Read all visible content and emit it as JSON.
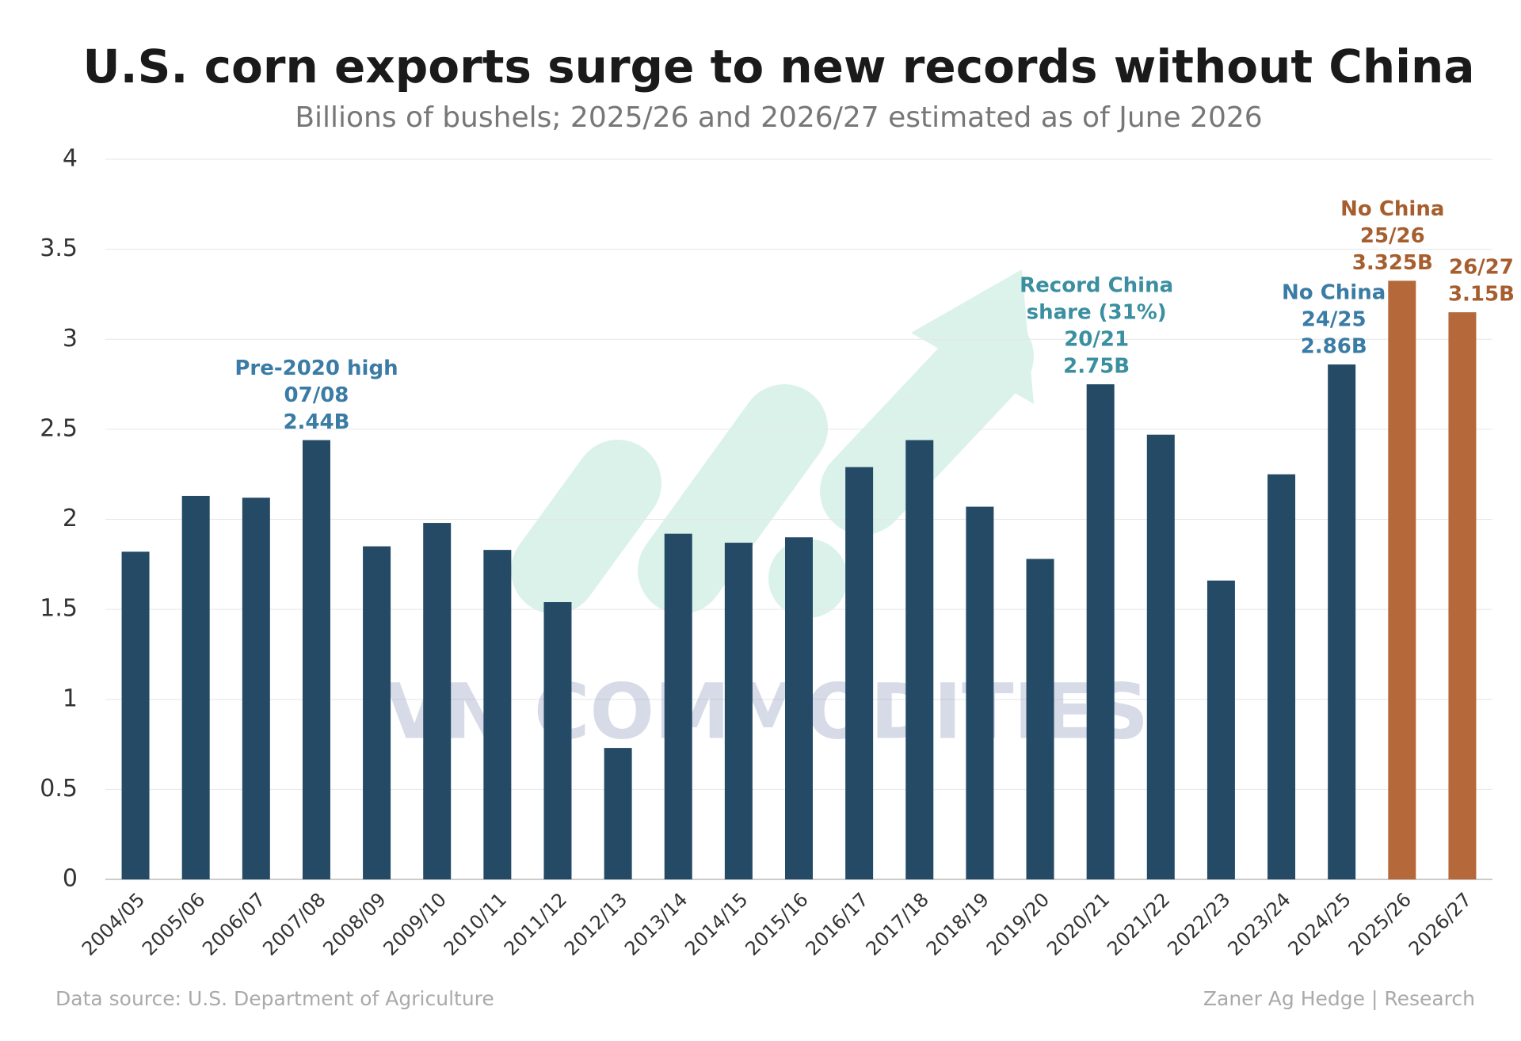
{
  "chart_data": {
    "type": "bar",
    "title": "U.S. corn exports surge to new records without China",
    "subtitle": "Billions of bushels; 2025/26 and 2026/27 estimated as of June 2026",
    "categories": [
      "2004/05",
      "2005/06",
      "2006/07",
      "2007/08",
      "2008/09",
      "2009/10",
      "2010/11",
      "2011/12",
      "2012/13",
      "2013/14",
      "2014/15",
      "2015/16",
      "2016/17",
      "2017/18",
      "2018/19",
      "2019/20",
      "2020/21",
      "2021/22",
      "2022/23",
      "2023/24",
      "2024/25",
      "2025/26",
      "2026/27"
    ],
    "values": [
      1.82,
      2.13,
      2.12,
      2.44,
      1.85,
      1.98,
      1.83,
      1.54,
      0.73,
      1.92,
      1.87,
      1.9,
      2.29,
      2.44,
      2.07,
      1.78,
      2.75,
      2.47,
      1.66,
      2.25,
      2.86,
      3.325,
      3.15
    ],
    "colors": [
      "#244a66",
      "#244a66",
      "#244a66",
      "#244a66",
      "#244a66",
      "#244a66",
      "#244a66",
      "#244a66",
      "#244a66",
      "#244a66",
      "#244a66",
      "#244a66",
      "#244a66",
      "#244a66",
      "#244a66",
      "#244a66",
      "#244a66",
      "#244a66",
      "#244a66",
      "#244a66",
      "#244a66",
      "#b5683a",
      "#b5683a"
    ],
    "ylim": [
      0,
      4
    ],
    "yticks": [
      0,
      0.5,
      1,
      1.5,
      2,
      2.5,
      3,
      3.5,
      4
    ],
    "grid": true,
    "annotations": [
      {
        "lines": [
          "Pre-2020 high",
          "07/08",
          "2.44B"
        ],
        "color": "#3a7ca5"
      },
      {
        "lines": [
          "Record China",
          "share (31%)",
          "20/21",
          "2.75B"
        ],
        "color": "#3a8fa0"
      },
      {
        "lines": [
          "No China",
          "24/25",
          "2.86B"
        ],
        "color": "#3a7ca5"
      },
      {
        "lines": [
          "No China",
          "25/26",
          "3.325B"
        ],
        "color": "#a65e2e"
      },
      {
        "lines": [
          "26/27",
          "3.15B"
        ],
        "color": "#a65e2e"
      }
    ],
    "watermark": "VN COMMODITIES",
    "source": "Data source: U.S. Department of Agriculture",
    "credit": "Zaner Ag Hedge | Research"
  }
}
